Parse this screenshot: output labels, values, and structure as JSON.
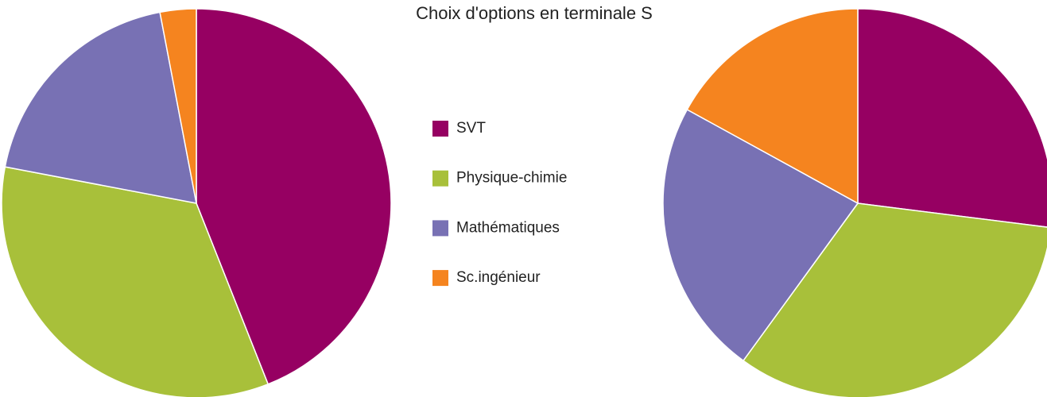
{
  "chart_data": {
    "type": "pie",
    "title": "Choix d'options en terminale S",
    "categories": [
      "SVT",
      "Physique-chimie",
      "Mathématiques",
      "Sc.ingénieur"
    ],
    "colors": [
      "#960062",
      "#a8c03a",
      "#7871b4",
      "#f5841f"
    ],
    "pies": [
      {
        "values": [
          44,
          34,
          19,
          3
        ]
      },
      {
        "values": [
          27,
          33,
          23,
          17
        ]
      }
    ]
  }
}
